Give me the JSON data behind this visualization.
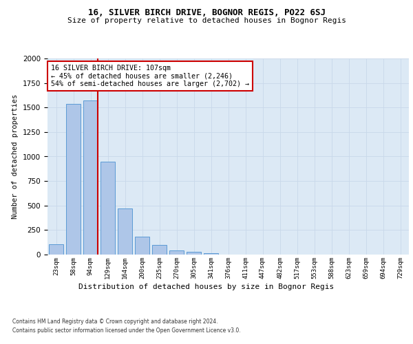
{
  "title1": "16, SILVER BIRCH DRIVE, BOGNOR REGIS, PO22 6SJ",
  "title2": "Size of property relative to detached houses in Bognor Regis",
  "xlabel": "Distribution of detached houses by size in Bognor Regis",
  "ylabel": "Number of detached properties",
  "bar_labels": [
    "23sqm",
    "58sqm",
    "94sqm",
    "129sqm",
    "164sqm",
    "200sqm",
    "235sqm",
    "270sqm",
    "305sqm",
    "341sqm",
    "376sqm",
    "411sqm",
    "447sqm",
    "482sqm",
    "517sqm",
    "553sqm",
    "588sqm",
    "623sqm",
    "659sqm",
    "694sqm",
    "729sqm"
  ],
  "bar_values": [
    105,
    1535,
    1575,
    945,
    470,
    185,
    95,
    45,
    28,
    12,
    0,
    0,
    0,
    0,
    0,
    0,
    0,
    0,
    0,
    0,
    0
  ],
  "bar_color": "#aec6e8",
  "bar_edge_color": "#5b9bd5",
  "vline_color": "#cc0000",
  "vline_x_index": 2.42,
  "annotation_text": "16 SILVER BIRCH DRIVE: 107sqm\n← 45% of detached houses are smaller (2,246)\n54% of semi-detached houses are larger (2,702) →",
  "ylim_max": 2000,
  "grid_color": "#c8d8ea",
  "background_color": "#dce9f5",
  "footer1": "Contains HM Land Registry data © Crown copyright and database right 2024.",
  "footer2": "Contains public sector information licensed under the Open Government Licence v3.0."
}
